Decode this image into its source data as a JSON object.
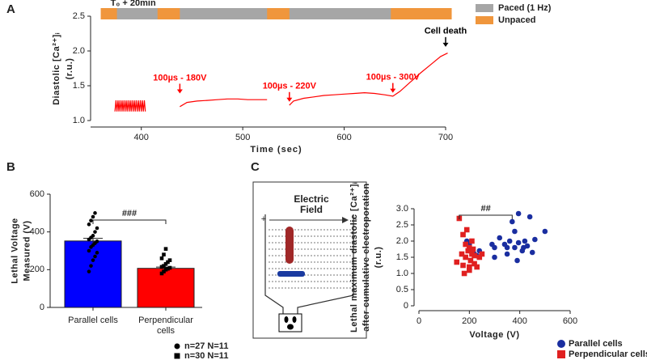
{
  "panel_labels": [
    "A",
    "B",
    "C"
  ],
  "diagram": {
    "title": "Electric Field",
    "plus": "+",
    "minus": "-"
  },
  "chart_data": [
    {
      "type": "line",
      "xlabel": "Time (sec)",
      "ylabel": [
        "Diastolic [Ca²⁺]ᵢ",
        "(r.u.)"
      ],
      "xlim": [
        350,
        700
      ],
      "ylim": [
        1,
        2.5
      ],
      "xticks": [
        400,
        500,
        600,
        700
      ],
      "yticks": [
        {
          "value": 1,
          "label": "1.0"
        },
        1.5,
        {
          "value": 2,
          "label": "2.0"
        },
        2.5
      ],
      "color": "#ff0000",
      "x": [
        374,
        375,
        376,
        377,
        378,
        379,
        380,
        381,
        382,
        383,
        384,
        385,
        386,
        387,
        388,
        389,
        390,
        391,
        392,
        393,
        394,
        395,
        396,
        397,
        398,
        399,
        400,
        401,
        402,
        403,
        404,
        420,
        438,
        445,
        455,
        465,
        475,
        485,
        495,
        505,
        515,
        524,
        535,
        546,
        550,
        560,
        570,
        580,
        590,
        600,
        610,
        620,
        630,
        640,
        648,
        655,
        665,
        675,
        685,
        695,
        702
      ],
      "values": [
        1.13,
        1.29,
        1.13,
        1.29,
        1.13,
        1.29,
        1.13,
        1.29,
        1.13,
        1.29,
        1.13,
        1.29,
        1.13,
        1.29,
        1.13,
        1.29,
        1.13,
        1.29,
        1.13,
        1.29,
        1.13,
        1.29,
        1.13,
        1.29,
        1.13,
        1.29,
        1.13,
        1.29,
        1.13,
        1.29,
        1.13,
        null,
        1.2,
        1.26,
        1.28,
        1.29,
        1.3,
        1.31,
        1.31,
        1.3,
        1.3,
        1.3,
        null,
        1.22,
        1.28,
        1.32,
        1.34,
        1.36,
        1.37,
        1.38,
        1.39,
        1.4,
        1.39,
        1.37,
        1.35,
        1.42,
        1.55,
        1.68,
        1.8,
        1.92,
        1.97
      ],
      "bands": [
        {
          "name": "Unpaced",
          "color": "#f0963c",
          "intervals": [
            [
              360,
              706
            ]
          ]
        },
        {
          "name": "Paced (1 Hz)",
          "color": "#a6a6a6",
          "intervals": [
            [
              376,
              416
            ],
            [
              438,
              524
            ],
            [
              546,
              646
            ]
          ]
        }
      ],
      "time_marker": {
        "text": "T₀ + 20min",
        "x": 392
      },
      "annotations": [
        {
          "text": "100µs - 180V",
          "x": 438,
          "y": 1.39,
          "color": "#ff0000"
        },
        {
          "text": "100µs - 220V",
          "x": 546,
          "y": 1.27,
          "color": "#ff0000"
        },
        {
          "text": "100µs - 300V",
          "x": 648,
          "y": 1.4,
          "color": "#ff0000"
        },
        {
          "text": "Cell death",
          "x": 700,
          "y": 2.06,
          "color": "#000000"
        }
      ]
    },
    {
      "type": "bar",
      "ylabel": [
        "Lethal Voltage",
        "Measured (V)"
      ],
      "categories": [
        "Parallel cells",
        "Perpendicular cells"
      ],
      "values": [
        352,
        207
      ],
      "errors": [
        14,
        7
      ],
      "colors": [
        "#0000ff",
        "#ff0000"
      ],
      "ylim": [
        0,
        600
      ],
      "yticks": [
        0,
        200,
        400,
        600
      ],
      "points": [
        [
          190,
          220,
          250,
          270,
          290,
          300,
          320,
          330,
          340,
          350,
          360,
          370,
          380,
          400,
          420,
          440,
          460,
          480,
          500
        ],
        [
          180,
          190,
          200,
          205,
          210,
          215,
          220,
          230,
          240,
          250,
          260,
          280,
          310
        ]
      ],
      "legend": [
        {
          "label": "n=27 N=11",
          "marker": "circle"
        },
        {
          "label": "n=30 N=11",
          "marker": "square"
        }
      ],
      "significance": {
        "text": "###",
        "y": 463
      }
    },
    {
      "type": "scatter",
      "xlabel": "Voltage (V)",
      "ylabel": [
        "Lethal maximum diastolic [Ca²⁺]ᵢ",
        "after cumulative electroporation",
        "(r.u.)"
      ],
      "xlim": [
        0,
        600
      ],
      "ylim": [
        0,
        3
      ],
      "xticks": [
        0,
        200,
        400,
        600
      ],
      "yticks": [
        0,
        0.5,
        {
          "value": 1,
          "label": "1.0"
        },
        1.5,
        {
          "value": 2,
          "label": "2.0"
        },
        2.5,
        {
          "value": 3,
          "label": "3.0"
        }
      ],
      "series": [
        {
          "name": "Parallel cells",
          "color": "#1a2ea0",
          "marker": "circle",
          "x": [
            190,
            200,
            220,
            230,
            240,
            290,
            300,
            300,
            350,
            350,
            360,
            370,
            380,
            380,
            395,
            395,
            410,
            415,
            420,
            430,
            440,
            450,
            460,
            500,
            340,
            320,
            390
          ],
          "y": [
            2.0,
            1.9,
            1.6,
            1.55,
            1.7,
            1.9,
            1.5,
            1.8,
            1.8,
            1.6,
            2.0,
            2.6,
            1.8,
            2.3,
            2.85,
            1.95,
            1.7,
            1.8,
            2.0,
            1.85,
            2.75,
            1.65,
            2.05,
            2.3,
            1.9,
            2.1,
            1.4
          ]
        },
        {
          "name": "Perpendicular cells",
          "color": "#e02020",
          "marker": "square",
          "x": [
            150,
            160,
            175,
            175,
            185,
            185,
            190,
            195,
            200,
            200,
            205,
            210,
            210,
            215,
            220,
            220,
            230,
            240,
            250,
            180,
            170,
            200
          ],
          "y": [
            1.35,
            2.7,
            1.25,
            2.2,
            1.9,
            1.5,
            2.35,
            1.7,
            1.8,
            1.1,
            1.4,
            2.0,
            1.6,
            1.75,
            1.3,
            1.55,
            1.2,
            1.5,
            1.6,
            1.0,
            1.6,
            1.2
          ]
        }
      ],
      "significance": {
        "text": "##",
        "x": [
          160,
          370
        ],
        "y": 2.8
      }
    }
  ]
}
